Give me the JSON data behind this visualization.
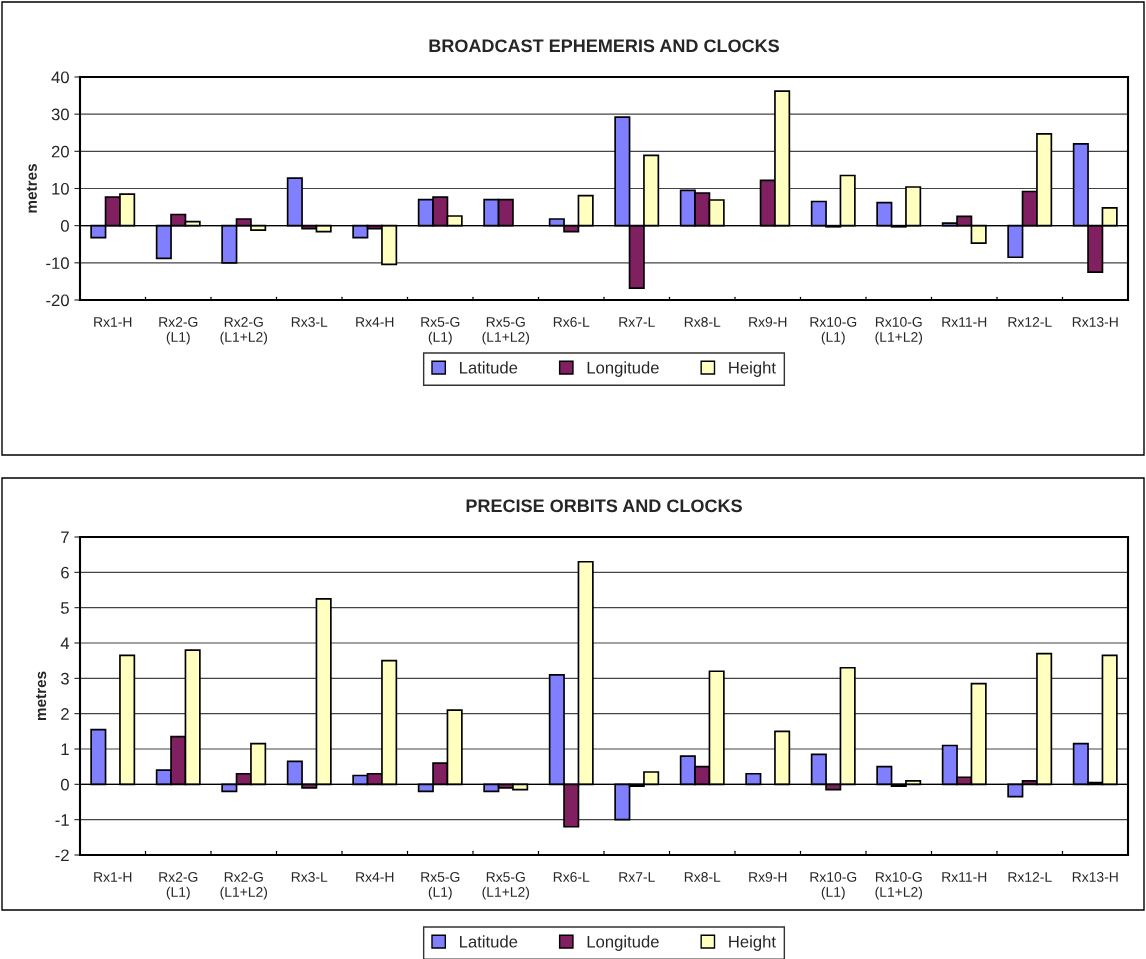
{
  "chart_data": [
    {
      "type": "bar",
      "title": "BROADCAST EPHEMERIS AND CLOCKS",
      "ylabel": "metres",
      "categories": [
        "Rx1-H",
        "Rx2-G\n(L1)",
        "Rx2-G\n(L1+L2)",
        "Rx3-L",
        "Rx4-H",
        "Rx5-G\n(L1)",
        "Rx5-G\n(L1+L2)",
        "Rx6-L",
        "Rx7-L",
        "Rx8-L",
        "Rx9-H",
        "Rx10-G\n(L1)",
        "Rx10-G\n(L1+L2)",
        "Rx11-H",
        "Rx12-L",
        "Rx13-H"
      ],
      "series": [
        {
          "name": "Latitude",
          "color": "#8080ff",
          "values": [
            -3.2,
            -8.8,
            -10,
            12.8,
            -3.2,
            7,
            7,
            1.8,
            29.2,
            9.5,
            null,
            6.5,
            6.2,
            0.7,
            -8.5,
            22
          ]
        },
        {
          "name": "Longitude",
          "color": "#802060",
          "values": [
            7.7,
            3,
            1.8,
            -0.8,
            -0.8,
            7.7,
            7,
            -1.6,
            -16.8,
            8.8,
            12.2,
            -0.3,
            -0.3,
            2.5,
            9.2,
            -12.5
          ]
        },
        {
          "name": "Height",
          "color": "#ffffc0",
          "values": [
            8.5,
            1.1,
            -1.2,
            -1.6,
            -10.4,
            2.6,
            null,
            8.1,
            18.9,
            6.9,
            36.2,
            13.5,
            10.4,
            -4.7,
            24.7,
            4.8
          ]
        }
      ],
      "ylim": [
        -20,
        40
      ],
      "yticks": [
        -20,
        -10,
        0,
        10,
        20,
        30,
        40
      ],
      "grid": "y",
      "legend": "bottom"
    },
    {
      "type": "bar",
      "title": "PRECISE ORBITS AND CLOCKS",
      "ylabel": "metres",
      "categories": [
        "Rx1-H",
        "Rx2-G\n(L1)",
        "Rx2-G\n(L1+L2)",
        "Rx3-L",
        "Rx4-H",
        "Rx5-G\n(L1)",
        "Rx5-G\n(L1+L2)",
        "Rx6-L",
        "Rx7-L",
        "Rx8-L",
        "Rx9-H",
        "Rx10-G\n(L1)",
        "Rx10-G\n(L1+L2)",
        "Rx11-H",
        "Rx12-L",
        "Rx13-H"
      ],
      "series": [
        {
          "name": "Latitude",
          "color": "#8080ff",
          "values": [
            1.55,
            0.4,
            -0.2,
            0.65,
            0.25,
            -0.2,
            -0.2,
            3.1,
            -1.0,
            0.8,
            0.3,
            0.85,
            0.5,
            1.1,
            -0.35,
            1.15
          ]
        },
        {
          "name": "Longitude",
          "color": "#802060",
          "values": [
            null,
            1.35,
            0.3,
            -0.1,
            0.3,
            0.6,
            -0.1,
            -1.2,
            -0.05,
            0.5,
            null,
            -0.15,
            -0.05,
            0.2,
            0.1,
            0.05
          ]
        },
        {
          "name": "Height",
          "color": "#ffffc0",
          "values": [
            3.65,
            3.8,
            1.15,
            5.25,
            3.5,
            2.1,
            -0.15,
            6.3,
            0.35,
            3.2,
            1.5,
            3.3,
            0.1,
            2.85,
            3.7,
            3.65
          ]
        }
      ],
      "ylim": [
        -2,
        7
      ],
      "yticks": [
        -2,
        -1,
        0,
        1,
        2,
        3,
        4,
        5,
        6,
        7
      ],
      "grid": "y",
      "legend": "bottom"
    }
  ]
}
